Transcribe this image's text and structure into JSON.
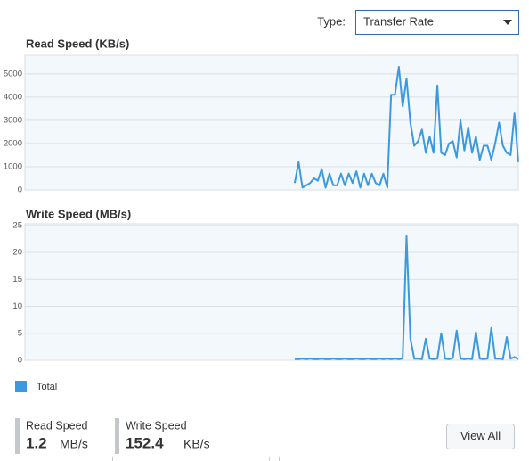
{
  "type_label": "Type:",
  "type_value": "Transfer Rate",
  "chart_data": [
    {
      "type": "line",
      "title": "Read Speed (KB/s)",
      "grid": true,
      "ylim": [
        0,
        5800
      ],
      "yticks": [
        0,
        1000,
        2000,
        3000,
        4000,
        5000
      ],
      "series": [
        {
          "color": "#3b99e0",
          "values": [
            null,
            null,
            null,
            null,
            null,
            null,
            null,
            null,
            null,
            null,
            null,
            null,
            null,
            null,
            null,
            null,
            null,
            null,
            null,
            null,
            null,
            null,
            null,
            null,
            null,
            null,
            null,
            null,
            null,
            null,
            null,
            null,
            null,
            null,
            null,
            null,
            null,
            null,
            null,
            null,
            null,
            null,
            null,
            null,
            null,
            null,
            null,
            null,
            null,
            null,
            null,
            null,
            null,
            null,
            null,
            null,
            null,
            null,
            null,
            null,
            null,
            null,
            null,
            null,
            null,
            null,
            null,
            null,
            null,
            null,
            300,
            1200,
            100,
            200,
            300,
            500,
            400,
            900,
            100,
            700,
            200,
            200,
            700,
            200,
            700,
            300,
            800,
            100,
            700,
            200,
            700,
            300,
            200,
            700,
            100,
            4100,
            4100,
            5300,
            3600,
            4800,
            2900,
            1900,
            2100,
            2600,
            1600,
            2300,
            1600,
            4500,
            1600,
            1500,
            2000,
            2100,
            1400,
            3000,
            1700,
            2700,
            1600,
            2300,
            1300,
            1900,
            1900,
            1300,
            2000,
            2900,
            1900,
            1600,
            1500,
            3300,
            1200
          ]
        }
      ]
    },
    {
      "type": "line",
      "title": "Write Speed (MB/s)",
      "grid": true,
      "ylim": [
        0,
        25.3
      ],
      "yticks": [
        0,
        5,
        10,
        15,
        20,
        25
      ],
      "series": [
        {
          "name": "Total",
          "color": "#3b99e0",
          "values": [
            null,
            null,
            null,
            null,
            null,
            null,
            null,
            null,
            null,
            null,
            null,
            null,
            null,
            null,
            null,
            null,
            null,
            null,
            null,
            null,
            null,
            null,
            null,
            null,
            null,
            null,
            null,
            null,
            null,
            null,
            null,
            null,
            null,
            null,
            null,
            null,
            null,
            null,
            null,
            null,
            null,
            null,
            null,
            null,
            null,
            null,
            null,
            null,
            null,
            null,
            null,
            null,
            null,
            null,
            null,
            null,
            null,
            null,
            null,
            null,
            null,
            null,
            null,
            null,
            null,
            null,
            null,
            null,
            null,
            null,
            0.2,
            0.2,
            0.3,
            0.2,
            0.3,
            0.2,
            0.2,
            0.3,
            0.2,
            0.2,
            0.3,
            0.2,
            0.2,
            0.3,
            0.2,
            0.2,
            0.3,
            0.2,
            0.2,
            0.3,
            0.2,
            0.2,
            0.3,
            0.2,
            0.3,
            0.2,
            0.3,
            0.2,
            0.3,
            23,
            4,
            0.3,
            0.3,
            0.2,
            4,
            0.3,
            0.2,
            0.3,
            5,
            0.3,
            0.2,
            0.4,
            5.5,
            0.3,
            0.2,
            0.3,
            0.2,
            5.2,
            0.3,
            0.2,
            0.3,
            6,
            0.3,
            0.3,
            0.2,
            4.3,
            0.3,
            0.6,
            0.2
          ]
        }
      ]
    }
  ],
  "stats": [
    {
      "label": "Read Speed",
      "value": "1.2",
      "unit": "MB/s"
    },
    {
      "label": "Write Speed",
      "value": "152.4",
      "unit": "KB/s"
    }
  ],
  "button": "View All"
}
